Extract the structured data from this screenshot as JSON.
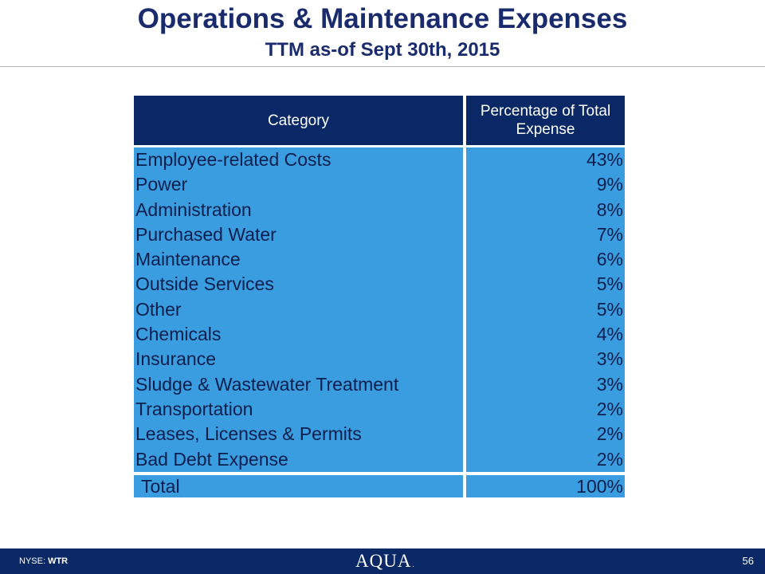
{
  "title": "Operations & Maintenance Expenses",
  "subtitle": "TTM as-of Sept 30th, 2015",
  "table": {
    "headers": {
      "category": "Category",
      "percentage": "Percentage of Total Expense"
    },
    "rows": [
      {
        "category": "Employee-related Costs",
        "percentage": "43%"
      },
      {
        "category": "Power",
        "percentage": "9%"
      },
      {
        "category": "Administration",
        "percentage": "8%"
      },
      {
        "category": "Purchased Water",
        "percentage": "7%"
      },
      {
        "category": "Maintenance",
        "percentage": "6%"
      },
      {
        "category": "Outside Services",
        "percentage": "5%"
      },
      {
        "category": "Other",
        "percentage": "5%"
      },
      {
        "category": "Chemicals",
        "percentage": "4%"
      },
      {
        "category": "Insurance",
        "percentage": "3%"
      },
      {
        "category": "Sludge & Wastewater Treatment",
        "percentage": "3%"
      },
      {
        "category": "Transportation",
        "percentage": "2%"
      },
      {
        "category": "Leases, Licenses & Permits",
        "percentage": "2%"
      },
      {
        "category": "Bad Debt Expense",
        "percentage": "2%"
      }
    ],
    "total": {
      "category": "Total",
      "percentage": "100%"
    }
  },
  "footer": {
    "exchange_label": "NYSE:",
    "ticker": "WTR",
    "logo_text": "AQUA",
    "logo_mark": ".",
    "page_number": "56"
  },
  "colors": {
    "title": "#1a2b6d",
    "header_bg": "#0b2866",
    "row_bg": "#3a9de0",
    "row_text": "#0b1f4d",
    "footer_bg": "#0b2866"
  }
}
